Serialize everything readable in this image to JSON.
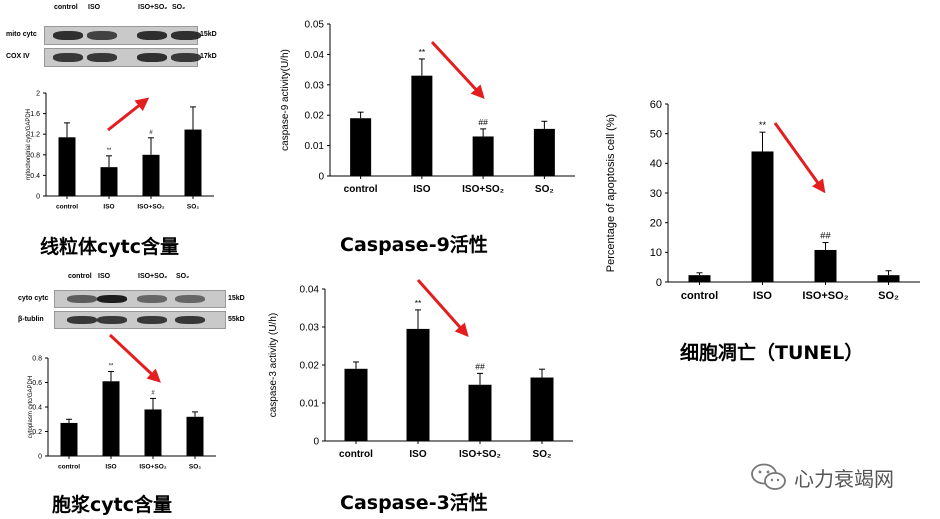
{
  "captions": {
    "mito": "线粒体cytc含量",
    "cyto": "胞浆cytc含量",
    "casp9": "Caspase-9活性",
    "casp3": "Caspase-3活性",
    "tunel": "细胞凋亡（TUNEL）"
  },
  "western_blots": {
    "mito": {
      "lanes": [
        "control",
        "ISO",
        "ISO+SO₂",
        "SO₂"
      ],
      "rows": [
        {
          "label": "mito cytc",
          "size": "15kD"
        },
        {
          "label": "COX IV",
          "size": "17kD"
        }
      ]
    },
    "cyto": {
      "lanes": [
        "control",
        "ISO",
        "ISO+SO₂",
        "SO₂"
      ],
      "rows": [
        {
          "label": "cyto cytc",
          "size": "15kD"
        },
        {
          "label": "β-tublin",
          "size": "55kD"
        }
      ]
    }
  },
  "watermark": {
    "text": "心力衰竭网",
    "icon": "wechat-icon"
  },
  "chart_data": [
    {
      "id": "mito",
      "type": "bar",
      "categories": [
        "control",
        "ISO",
        "ISO+SO₂",
        "SO₂"
      ],
      "values": [
        1.14,
        0.56,
        0.8,
        1.29
      ],
      "errors": [
        0.28,
        0.22,
        0.33,
        0.44
      ],
      "sig": [
        "",
        "**",
        "#",
        ""
      ],
      "ylabel": "mitochondrial cytc/GAPDH",
      "ylim": [
        0,
        2
      ],
      "yticks": [
        "0",
        "0.4",
        "0.8",
        "1.2",
        "1.6",
        "2"
      ],
      "arrow": "up"
    },
    {
      "id": "cyto",
      "type": "bar",
      "categories": [
        "control",
        "ISO",
        "ISO+SO₂",
        "SO₂"
      ],
      "values": [
        0.27,
        0.61,
        0.38,
        0.32
      ],
      "errors": [
        0.03,
        0.08,
        0.09,
        0.04
      ],
      "sig": [
        "",
        "**",
        "#",
        ""
      ],
      "ylabel": "cytoplasm cytc/GAPDH",
      "ylim": [
        0,
        0.8
      ],
      "yticks": [
        "0",
        "0.2",
        "0.4",
        "0.6",
        "0.8"
      ],
      "arrow": "down"
    },
    {
      "id": "casp9",
      "type": "bar",
      "categories": [
        "control",
        "ISO",
        "ISO+SO₂",
        "SO₂"
      ],
      "values": [
        0.019,
        0.033,
        0.013,
        0.0155
      ],
      "errors": [
        0.002,
        0.0055,
        0.0025,
        0.0025
      ],
      "sig": [
        "",
        "**",
        "##",
        ""
      ],
      "ylabel": "caspase-9 activity(U/h)",
      "ylim": [
        0,
        0.05
      ],
      "yticks": [
        "0",
        "0.01",
        "0.02",
        "0.03",
        "0.04",
        "0.05"
      ],
      "arrow": "down"
    },
    {
      "id": "casp3",
      "type": "bar",
      "categories": [
        "control",
        "ISO",
        "ISO+SO₂",
        "SO₂"
      ],
      "values": [
        0.019,
        0.0295,
        0.0148,
        0.0167
      ],
      "errors": [
        0.0018,
        0.005,
        0.003,
        0.0022
      ],
      "sig": [
        "",
        "**",
        "##",
        ""
      ],
      "ylabel": "caspase-3 activity (U/h)",
      "ylim": [
        0,
        0.04
      ],
      "yticks": [
        "0",
        "0.01",
        "0.02",
        "0.03",
        "0.04"
      ],
      "arrow": "down"
    },
    {
      "id": "tunel",
      "type": "bar",
      "categories": [
        "control",
        "ISO",
        "ISO+SO₂",
        "SO₂"
      ],
      "values": [
        2.3,
        44,
        10.8,
        2.3
      ],
      "errors": [
        0.8,
        6.5,
        2.5,
        1.5
      ],
      "sig": [
        "",
        "**",
        "##",
        ""
      ],
      "ylabel": "Percentage of apoptosis cell (%)",
      "ylim": [
        0,
        60
      ],
      "yticks": [
        "0",
        "10",
        "20",
        "30",
        "40",
        "50",
        "60"
      ],
      "arrow": "down"
    }
  ]
}
